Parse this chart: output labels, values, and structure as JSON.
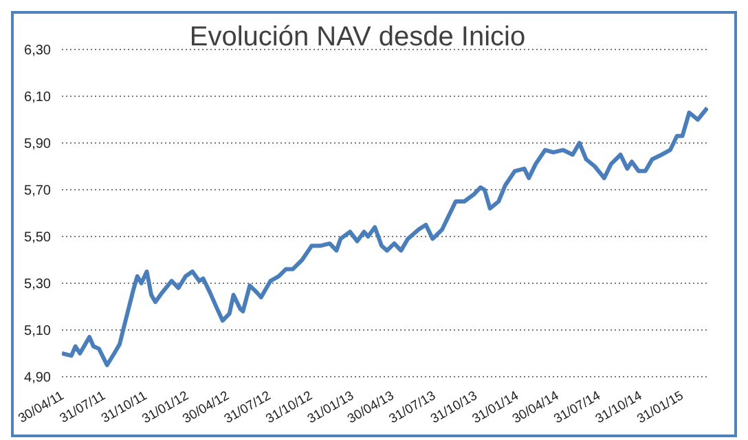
{
  "chart_data": {
    "type": "line",
    "title": "Evolución NAV desde Inicio",
    "x": [
      "2011-04-30",
      "2011-05-21",
      "2011-05-30",
      "2011-06-09",
      "2011-06-30",
      "2011-07-09",
      "2011-07-21",
      "2011-08-08",
      "2011-08-24",
      "2011-09-05",
      "2011-09-14",
      "2011-10-05",
      "2011-10-14",
      "2011-10-23",
      "2011-11-04",
      "2011-11-14",
      "2011-11-23",
      "2011-12-08",
      "2011-12-29",
      "2012-01-13",
      "2012-01-29",
      "2012-02-13",
      "2012-02-28",
      "2012-03-08",
      "2012-03-23",
      "2012-04-08",
      "2012-04-20",
      "2012-05-05",
      "2012-05-14",
      "2012-05-29",
      "2012-06-04",
      "2012-06-19",
      "2012-07-05",
      "2012-07-14",
      "2012-08-04",
      "2012-08-22",
      "2012-09-07",
      "2012-09-22",
      "2012-10-13",
      "2012-11-03",
      "2012-11-22",
      "2012-12-13",
      "2012-12-28",
      "2013-01-06",
      "2013-01-27",
      "2013-02-12",
      "2013-02-27",
      "2013-03-08",
      "2013-03-23",
      "2013-04-07",
      "2013-04-19",
      "2013-05-05",
      "2013-05-20",
      "2013-06-04",
      "2013-06-28",
      "2013-07-14",
      "2013-07-29",
      "2013-08-19",
      "2013-09-18",
      "2013-10-07",
      "2013-10-28",
      "2013-11-12",
      "2013-11-21",
      "2013-12-03",
      "2013-12-22",
      "2014-01-06",
      "2014-01-27",
      "2014-02-17",
      "2014-02-27",
      "2014-03-14",
      "2014-04-04",
      "2014-04-22",
      "2014-05-14",
      "2014-06-04",
      "2014-06-19",
      "2014-07-04",
      "2014-07-23",
      "2014-08-13",
      "2014-08-28",
      "2014-09-18",
      "2014-10-03",
      "2014-10-13",
      "2014-10-28",
      "2014-11-12",
      "2014-11-27",
      "2014-12-18",
      "2015-01-06",
      "2015-01-21",
      "2015-02-02",
      "2015-02-17",
      "2015-03-08",
      "2015-03-29"
    ],
    "series": [
      {
        "color": "#4a7ebb",
        "values": [
          5.0,
          4.99,
          5.03,
          5.0,
          5.07,
          5.03,
          5.02,
          4.95,
          5.0,
          5.04,
          5.11,
          5.27,
          5.33,
          5.3,
          5.35,
          5.25,
          5.22,
          5.26,
          5.31,
          5.28,
          5.33,
          5.35,
          5.31,
          5.32,
          5.26,
          5.19,
          5.14,
          5.17,
          5.25,
          5.19,
          5.18,
          5.29,
          5.26,
          5.24,
          5.31,
          5.33,
          5.36,
          5.36,
          5.4,
          5.46,
          5.46,
          5.47,
          5.44,
          5.49,
          5.52,
          5.48,
          5.52,
          5.5,
          5.54,
          5.46,
          5.44,
          5.47,
          5.44,
          5.49,
          5.53,
          5.55,
          5.49,
          5.53,
          5.65,
          5.65,
          5.68,
          5.71,
          5.7,
          5.62,
          5.65,
          5.72,
          5.78,
          5.79,
          5.75,
          5.81,
          5.87,
          5.86,
          5.87,
          5.85,
          5.9,
          5.83,
          5.8,
          5.75,
          5.81,
          5.85,
          5.79,
          5.82,
          5.78,
          5.78,
          5.83,
          5.85,
          5.87,
          5.93,
          5.93,
          6.03,
          6.0,
          6.05
        ]
      }
    ],
    "xlim": [
      "2011-04-30",
      "2015-03-31"
    ],
    "xticks": [
      {
        "value": "2011-04-30",
        "label": "30/04/11"
      },
      {
        "value": "2011-07-31",
        "label": "31/07/11"
      },
      {
        "value": "2011-10-31",
        "label": "31/10/11"
      },
      {
        "value": "2012-01-31",
        "label": "31/01/12"
      },
      {
        "value": "2012-04-30",
        "label": "30/04/12"
      },
      {
        "value": "2012-07-31",
        "label": "31/07/12"
      },
      {
        "value": "2012-10-31",
        "label": "31/10/12"
      },
      {
        "value": "2013-01-31",
        "label": "31/01/13"
      },
      {
        "value": "2013-04-30",
        "label": "30/04/13"
      },
      {
        "value": "2013-07-31",
        "label": "31/07/13"
      },
      {
        "value": "2013-10-31",
        "label": "31/10/13"
      },
      {
        "value": "2014-01-31",
        "label": "31/01/14"
      },
      {
        "value": "2014-04-30",
        "label": "30/04/14"
      },
      {
        "value": "2014-07-31",
        "label": "31/07/14"
      },
      {
        "value": "2014-10-31",
        "label": "31/10/14"
      },
      {
        "value": "2015-01-31",
        "label": "31/01/15"
      }
    ],
    "ylim": [
      4.9,
      6.3
    ],
    "yticks": [
      {
        "value": 4.9,
        "label": "4,90"
      },
      {
        "value": 5.1,
        "label": "5,10"
      },
      {
        "value": 5.3,
        "label": "5,30"
      },
      {
        "value": 5.5,
        "label": "5,50"
      },
      {
        "value": 5.7,
        "label": "5,70"
      },
      {
        "value": 5.9,
        "label": "5,90"
      },
      {
        "value": 6.1,
        "label": "6,10"
      },
      {
        "value": 6.3,
        "label": "6,30"
      }
    ],
    "grid": "y"
  }
}
